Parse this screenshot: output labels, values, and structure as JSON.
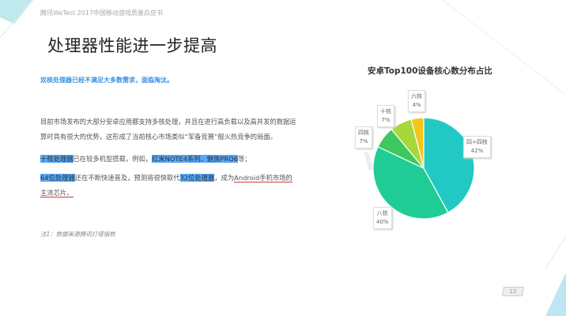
{
  "header": {
    "text": "腾讯WeTest   2017中国移动游戏质量白皮书"
  },
  "title": "处理器性能进一步提高",
  "subtitle": "双核处理器已经不满足大多数需求，面临淘汰。",
  "paragraphs": {
    "p1": "目前市场发布的大部分安卓应用都支持多核处理，并且在进行高负载以及高并发的数据运算时具有很大的优势，这形成了当前核心市场类似“军备竞赛”般火热竞争的局面。",
    "p2": {
      "hl1": "十核处理器",
      "t1": "已在较多机型搭载，例如，",
      "hl2": "红米NOTE4系列、魅族PRO6",
      "t2": "等；"
    },
    "p3": {
      "hl1": "64位处理器",
      "t1": "还在不断快速普及，预测将很快取代",
      "hl2": "32位处理器",
      "t2": "，成为",
      "ul": "Android手机市场的主流芯片。"
    }
  },
  "note": "注1：数据来源腾讯灯塔指数",
  "watermark": "WeTest",
  "page_number": "12",
  "chart_data": {
    "type": "pie",
    "title": "安卓Top100设备核心数分布占比",
    "slices": [
      {
        "label": "四+四核",
        "value": 42,
        "display": "42%",
        "color": "#22c9c4"
      },
      {
        "label": "八核",
        "value": 40,
        "display": "40%",
        "color": "#1fcc95"
      },
      {
        "label": "四核",
        "value": 7,
        "display": "7%",
        "color": "#3ec85e"
      },
      {
        "label": "十核",
        "value": 7,
        "display": "7%",
        "color": "#a6d83c"
      },
      {
        "label": "六核",
        "value": 4,
        "display": "4%",
        "color": "#f6c51a"
      }
    ]
  }
}
